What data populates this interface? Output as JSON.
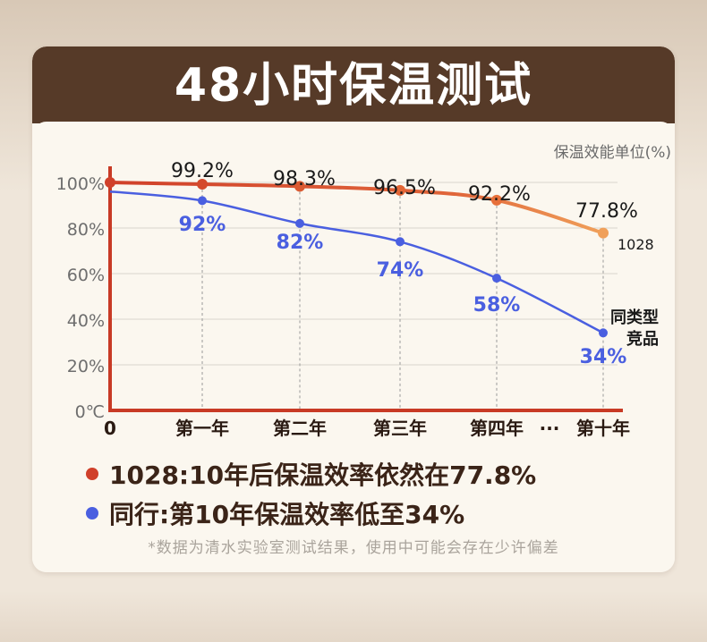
{
  "header": {
    "title": "48小时保温测试"
  },
  "unit_label": "保温效能单位(%)",
  "colors": {
    "product": "#d0402a",
    "product_end": "#f0a05a",
    "competitor": "#4a5fe0",
    "axis": "#c83a25",
    "header_bg": "#563a28"
  },
  "chart_data": {
    "type": "line",
    "title": "48小时保温测试",
    "ylabel": "保温效能单位(%)",
    "y_tick_labels": [
      "100%",
      "80%",
      "60%",
      "40%",
      "20%",
      "0℃"
    ],
    "x_start_label": "0",
    "categories": [
      "第一年",
      "第二年",
      "第三年",
      "第四年",
      "第十年"
    ],
    "ellipsis": "···",
    "ylim": [
      0,
      100
    ],
    "grid": true,
    "series": [
      {
        "name": "1028",
        "start": 100,
        "values": [
          99.2,
          98.3,
          96.5,
          92.2,
          77.8
        ],
        "labels": [
          "99.2%",
          "98.3%",
          "96.5%",
          "92.2%",
          "77.8%"
        ],
        "end_label": "1028"
      },
      {
        "name": "同类型竞品",
        "start": 96,
        "values": [
          92,
          82,
          74,
          58,
          34
        ],
        "labels": [
          "92%",
          "82%",
          "74%",
          "58%",
          "34%"
        ],
        "end_label_line1": "同类型",
        "end_label_line2": "竞品"
      }
    ]
  },
  "legend": {
    "item1": "1028:10年后保温效率依然在77.8%",
    "item2": "同行:第10年保温效率低至34%"
  },
  "footnote": "*数据为清水实验室测试结果，使用中可能会存在少许偏差"
}
